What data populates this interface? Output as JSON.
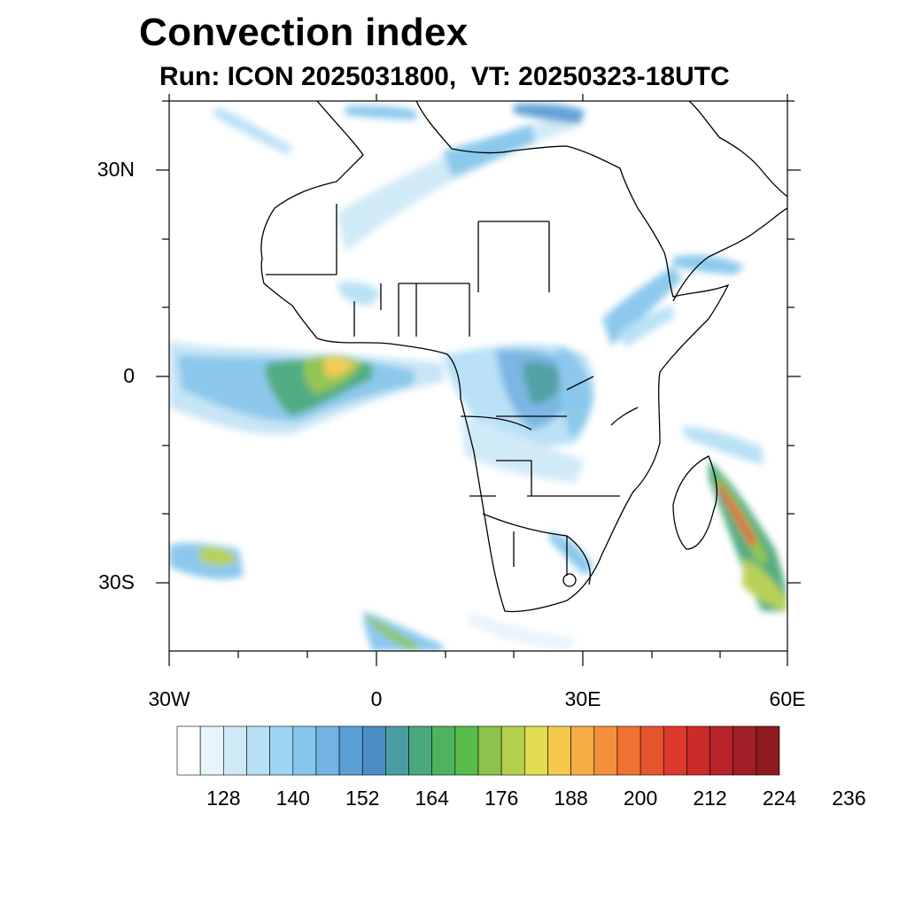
{
  "title": "Convection index",
  "subtitle": "Run: ICON 2025031800,  VT: 20250323-18UTC",
  "axes": {
    "lat_labels": [
      "30N",
      "0",
      "30S"
    ],
    "lon_labels": [
      "30W",
      "0",
      "30E",
      "60E"
    ]
  },
  "colorbar": {
    "labels": [
      "128",
      "140",
      "152",
      "164",
      "176",
      "188",
      "200",
      "212",
      "224",
      "236"
    ],
    "colors": [
      "#ffffff",
      "#e8f4fb",
      "#cfe9f7",
      "#b7e0f6",
      "#9dd5f4",
      "#86c6ec",
      "#74b4e3",
      "#5a9fd6",
      "#4a8cc4",
      "#4a9da2",
      "#4aa87c",
      "#4db35f",
      "#58bb4a",
      "#8dc24b",
      "#b5cf4f",
      "#e3dd53",
      "#f4c94e",
      "#f6ad45",
      "#f4903b",
      "#ef7232",
      "#e6552d",
      "#dc3a2b",
      "#cd2a2a",
      "#b8222a",
      "#a01e25",
      "#8c1a1e"
    ]
  }
}
